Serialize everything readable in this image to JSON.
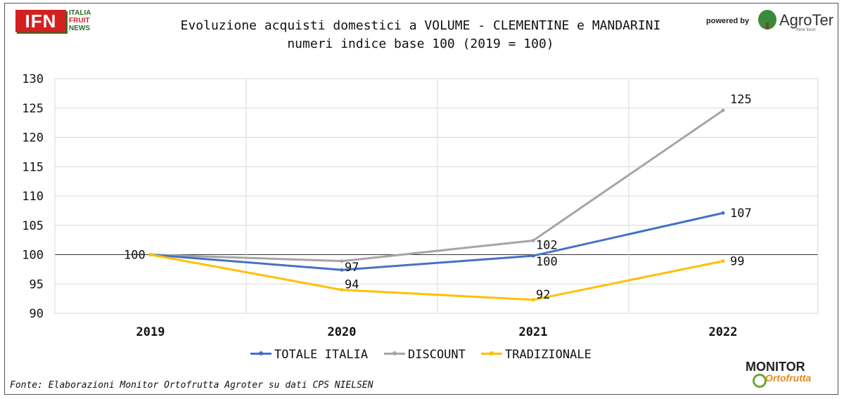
{
  "title_line1": "Evoluzione acquisti domestici a VOLUME - CLEMENTINE e MANDARINI",
  "title_line2": "numeri indice base 100 (2019 = 100)",
  "logo_ifn": {
    "main": "IFN",
    "sub1": "ITALIA",
    "sub2": "FRUIT",
    "sub3": "NEWS"
  },
  "logo_agroter": {
    "powered": "powered by",
    "name": "AgroTer",
    "tagline": "think fresh"
  },
  "logo_monitor": {
    "line1": "MONITOR",
    "line2": "Ortofrutta"
  },
  "source": "Fonte: Elaborazioni Monitor Ortofrutta Agroter su dati CPS NIELSEN",
  "colors": {
    "totale": "#4472c4",
    "discount": "#a5a5a5",
    "tradizionale": "#ffc000"
  },
  "chart_data": {
    "type": "line",
    "categories": [
      "2019",
      "2020",
      "2021",
      "2022"
    ],
    "ylim": [
      90,
      130
    ],
    "yticks": [
      90,
      95,
      100,
      105,
      110,
      115,
      120,
      125,
      130
    ],
    "grid": true,
    "legend": "bottom",
    "series": [
      {
        "name": "TOTALE ITALIA",
        "values": [
          100,
          97.4,
          99.8,
          107.1
        ],
        "labels": [
          "100",
          "97",
          "100",
          "107"
        ],
        "color": "#4472c4"
      },
      {
        "name": "DISCOUNT",
        "values": [
          100,
          98.9,
          102.4,
          124.6
        ],
        "labels": [
          "",
          "",
          "102",
          "125"
        ],
        "color": "#a5a5a5"
      },
      {
        "name": "TRADIZIONALE",
        "values": [
          100,
          94,
          92.3,
          98.9
        ],
        "labels": [
          "",
          "94",
          "92",
          "99"
        ],
        "color": "#ffc000"
      }
    ]
  }
}
